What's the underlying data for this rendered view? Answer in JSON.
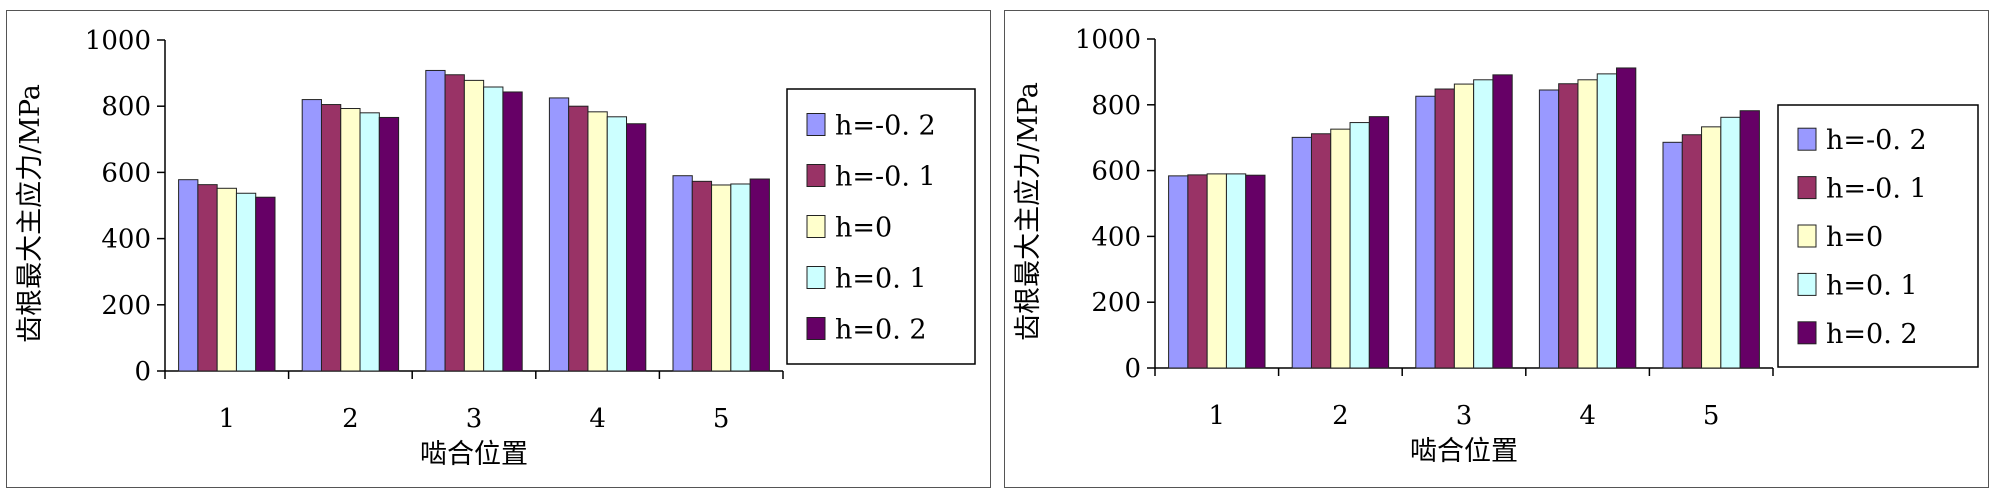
{
  "chart_data": [
    {
      "type": "bar",
      "xlabel": "啮合位置",
      "ylabel": "齿根最大主应力/MPa",
      "ylim": [
        0,
        1000
      ],
      "yticks": [
        "0",
        "200",
        "400",
        "600",
        "800",
        "1000"
      ],
      "categories": [
        "1",
        "2",
        "3",
        "4",
        "5"
      ],
      "legend_position": "right",
      "series": [
        {
          "name": "h=-0.2",
          "values": [
            578,
            820,
            908,
            825,
            590
          ]
        },
        {
          "name": "h=-0.1",
          "values": [
            563,
            805,
            895,
            800,
            573
          ]
        },
        {
          "name": "h=0",
          "values": [
            552,
            793,
            878,
            783,
            562
          ]
        },
        {
          "name": "h=0.1",
          "values": [
            537,
            780,
            858,
            768,
            565
          ]
        },
        {
          "name": "h=0.2",
          "values": [
            525,
            766,
            843,
            747,
            580
          ]
        }
      ]
    },
    {
      "type": "bar",
      "xlabel": "啮合位置",
      "ylabel": "齿根最大主应力/MPa",
      "ylim": [
        0,
        1000
      ],
      "yticks": [
        "0",
        "200",
        "400",
        "600",
        "800",
        "1000"
      ],
      "categories": [
        "1",
        "2",
        "3",
        "4",
        "5"
      ],
      "legend_position": "right",
      "series": [
        {
          "name": "h=-0.2",
          "values": [
            584,
            701,
            826,
            845,
            686
          ]
        },
        {
          "name": "h=-0.1",
          "values": [
            587,
            712,
            848,
            864,
            709
          ]
        },
        {
          "name": "h=0",
          "values": [
            590,
            726,
            863,
            876,
            733
          ]
        },
        {
          "name": "h=0.1",
          "values": [
            590,
            746,
            876,
            894,
            762
          ]
        },
        {
          "name": "h=0.2",
          "values": [
            586,
            764,
            891,
            912,
            782
          ]
        }
      ]
    }
  ],
  "series_colors": [
    "#9999ff",
    "#993366",
    "#ffffcc",
    "#ccffff",
    "#660066"
  ],
  "legend_labels": [
    "h=-0. 2",
    "h=-0. 1",
    "h=0",
    "h=0. 1",
    "h=0. 2"
  ]
}
